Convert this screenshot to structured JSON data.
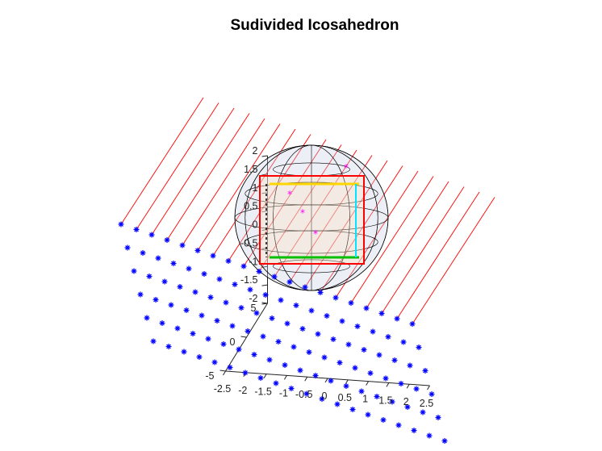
{
  "chart_data": {
    "type": "scatter3d",
    "title": "Sudivided Icosahedron",
    "xlabel": "",
    "ylabel": "",
    "zlabel": "",
    "xlim": [
      -2.5,
      2.5
    ],
    "ylim": [
      -5,
      5
    ],
    "zlim": [
      -2,
      2
    ],
    "x_ticks": [
      "-2.5",
      "-2",
      "-1.5",
      "-1",
      "-0.5",
      "0",
      "0.5",
      "1",
      "1.5",
      "2",
      "2.5"
    ],
    "y_ticks": [
      "5",
      "0",
      "-5"
    ],
    "z_ticks": [
      "2",
      "1.5",
      "1",
      "0.5",
      "0",
      "-0.5",
      "-1",
      "-1.5",
      "-2"
    ],
    "grid": false,
    "ray_grid": {
      "description": "ray origins (blue asterisks) on a plane with red ray directions",
      "x_range": [
        -2.5,
        2.5
      ],
      "y_range": [
        -2.5,
        2.5
      ],
      "rows": 20,
      "cols": 6,
      "origin_marker": "*",
      "origin_color": "#0000ff",
      "ray_color": "#ff0000"
    },
    "icosahedron": {
      "center": [
        0,
        0,
        0
      ],
      "radius": 1,
      "edge_color": "#000000",
      "face_color": "#c8d4e6"
    },
    "box": {
      "x_range": [
        -0.6,
        0.6
      ],
      "y_range": [
        -0.6,
        0.6
      ],
      "z_range": [
        -0.6,
        0.6
      ],
      "edge_color": "#ff0000",
      "highlight_colors": [
        "#ffd700",
        "#00c000",
        "#00e5ff",
        "#ff00ff",
        "#000000"
      ]
    }
  }
}
